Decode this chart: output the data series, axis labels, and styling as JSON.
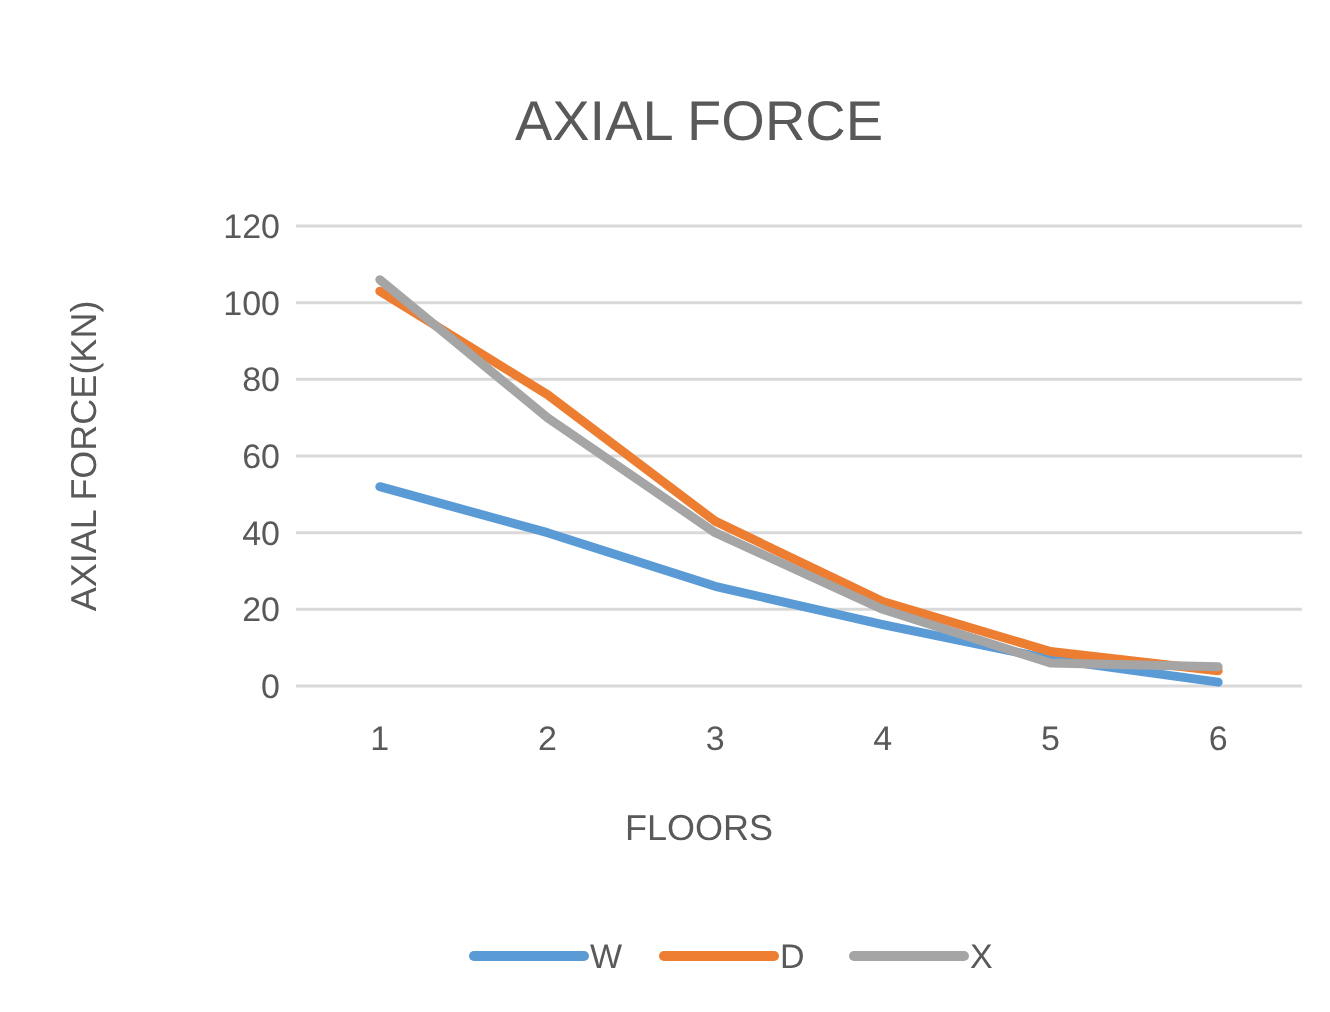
{
  "chart_data": {
    "type": "line",
    "title": "AXIAL FORCE",
    "xlabel": "FLOORS",
    "ylabel": "AXIAL FORCE(KN)",
    "categories": [
      "1",
      "2",
      "3",
      "4",
      "5",
      "6"
    ],
    "series": [
      {
        "name": "W",
        "color": "#5b9bd5",
        "values": [
          52,
          40,
          26,
          16,
          7,
          1
        ]
      },
      {
        "name": "D",
        "color": "#ed7d31",
        "values": [
          103,
          76,
          43,
          22,
          9,
          4
        ]
      },
      {
        "name": "X",
        "color": "#a5a5a5",
        "values": [
          106,
          70,
          40,
          20,
          6,
          5
        ]
      }
    ],
    "ylim": [
      0,
      120
    ],
    "yticks": [
      0,
      20,
      40,
      60,
      80,
      100,
      120
    ],
    "grid": "y",
    "legend": "bottom",
    "marker": "none",
    "line_style": "solid"
  }
}
